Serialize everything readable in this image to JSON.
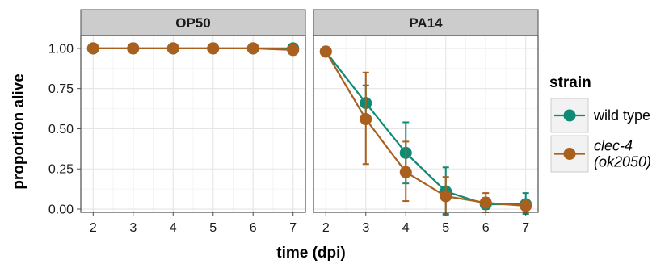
{
  "chart_data": {
    "type": "line",
    "xlabel": "time (dpi)",
    "ylabel": "proportion alive",
    "xlim": [
      2,
      7
    ],
    "ylim": [
      0,
      1
    ],
    "x_ticks": [
      2,
      3,
      4,
      5,
      6,
      7
    ],
    "y_ticks": [
      0,
      0.25,
      0.5,
      0.75,
      1.0
    ],
    "y_tick_labels": [
      "0.00",
      "0.25",
      "0.50",
      "0.75",
      "1.00"
    ],
    "legend": {
      "title": "strain",
      "placement": "right",
      "entries": [
        {
          "series": "wild type",
          "lines": [
            "wild type"
          ],
          "italic": false
        },
        {
          "series": "clec-4 (ok2050)",
          "lines": [
            "clec-4",
            "(ok2050)"
          ],
          "italic": true
        }
      ]
    },
    "panels": [
      {
        "facet": "OP50",
        "series": [
          {
            "name": "wild type",
            "color": "#0f8a74",
            "points": [
              {
                "x": 2,
                "y": 1.0
              },
              {
                "x": 3,
                "y": 1.0
              },
              {
                "x": 4,
                "y": 1.0
              },
              {
                "x": 5,
                "y": 1.0
              },
              {
                "x": 6,
                "y": 1.0
              },
              {
                "x": 7,
                "y": 1.0
              }
            ]
          },
          {
            "name": "clec-4 (ok2050)",
            "color": "#a95f1e",
            "points": [
              {
                "x": 2,
                "y": 1.0
              },
              {
                "x": 3,
                "y": 1.0
              },
              {
                "x": 4,
                "y": 1.0
              },
              {
                "x": 5,
                "y": 1.0
              },
              {
                "x": 6,
                "y": 1.0
              },
              {
                "x": 7,
                "y": 0.99
              }
            ]
          }
        ]
      },
      {
        "facet": "PA14",
        "series": [
          {
            "name": "wild type",
            "color": "#0f8a74",
            "points": [
              {
                "x": 2,
                "y": 0.98,
                "ymin": 0.97,
                "ymax": 0.99
              },
              {
                "x": 3,
                "y": 0.66,
                "ymin": 0.55,
                "ymax": 0.77
              },
              {
                "x": 4,
                "y": 0.35,
                "ymin": 0.16,
                "ymax": 0.54
              },
              {
                "x": 5,
                "y": 0.11,
                "ymin": -0.03,
                "ymax": 0.26
              },
              {
                "x": 6,
                "y": 0.03,
                "ymin": 0.0,
                "ymax": 0.07
              },
              {
                "x": 7,
                "y": 0.03,
                "ymin": -0.03,
                "ymax": 0.1
              }
            ]
          },
          {
            "name": "clec-4 (ok2050)",
            "color": "#a95f1e",
            "points": [
              {
                "x": 2,
                "y": 0.98,
                "ymin": 0.97,
                "ymax": 0.99
              },
              {
                "x": 3,
                "y": 0.56,
                "ymin": 0.28,
                "ymax": 0.85
              },
              {
                "x": 4,
                "y": 0.23,
                "ymin": 0.05,
                "ymax": 0.42
              },
              {
                "x": 5,
                "y": 0.08,
                "ymin": -0.04,
                "ymax": 0.2
              },
              {
                "x": 6,
                "y": 0.04,
                "ymin": -0.02,
                "ymax": 0.1
              },
              {
                "x": 7,
                "y": 0.02,
                "ymin": -0.02,
                "ymax": 0.06
              }
            ]
          }
        ]
      }
    ]
  }
}
